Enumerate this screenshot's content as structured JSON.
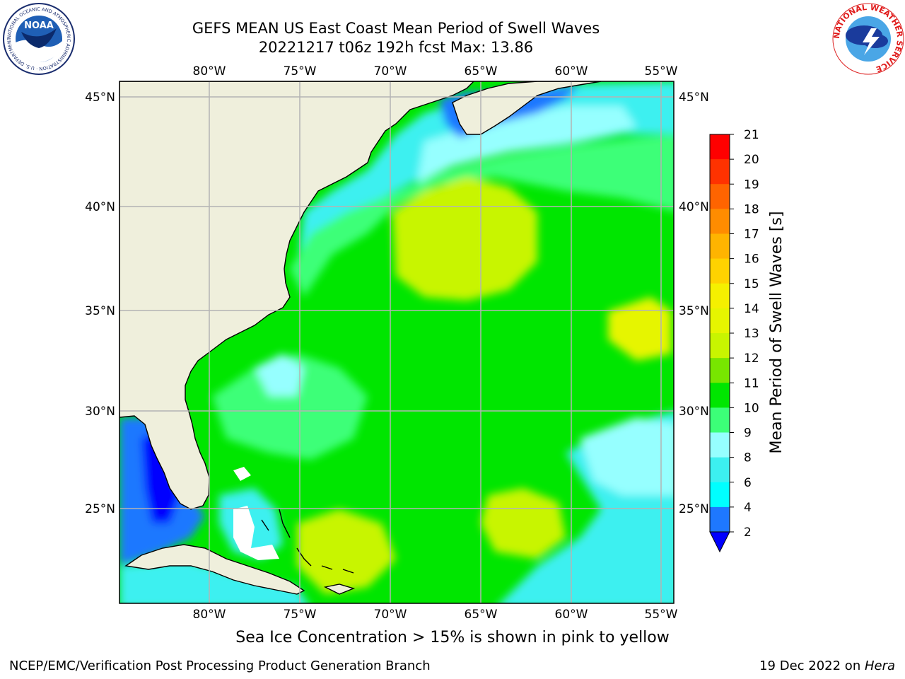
{
  "title": {
    "line1": "GEFS MEAN US East Coast Mean Period of Swell Waves",
    "line2": "20221217 t06z 192h fcst   Max: 13.86"
  },
  "map": {
    "lon_labels": [
      "80°W",
      "75°W",
      "70°W",
      "65°W",
      "60°W",
      "55°W"
    ],
    "lat_labels": [
      "45°N",
      "40°N",
      "35°N",
      "30°N",
      "25°N"
    ],
    "colors": {
      "land": "#efefdc",
      "grid": "#b4b4b4",
      "coast": "#000000",
      "ice_free": "#ffffff"
    },
    "regions": [
      {
        "name": "shelf-north",
        "color": "#3cf0f0"
      },
      {
        "name": "gulf-of-maine",
        "color": "#1e78ff"
      },
      {
        "name": "slope-light",
        "color": "#96ffff"
      },
      {
        "name": "mid-atlantic-green",
        "color": "#3cff78"
      },
      {
        "name": "central-green",
        "color": "#00e600"
      },
      {
        "name": "central-lime",
        "color": "#c8f500"
      },
      {
        "name": "east-yellow",
        "color": "#e6f500"
      },
      {
        "name": "southeast-cyan",
        "color": "#3cf0f0"
      },
      {
        "name": "gulf-blue",
        "color": "#1e78ff"
      },
      {
        "name": "gulf-deep",
        "color": "#0000ff"
      }
    ]
  },
  "colorbar": {
    "label": "Mean Period of Swell Waves [s]",
    "ticks": [
      "21",
      "20",
      "19",
      "18",
      "17",
      "16",
      "15",
      "14",
      "13",
      "12",
      "11",
      "10",
      "9",
      "8",
      "6",
      "4",
      "2"
    ],
    "colors": [
      "#ff0000",
      "#ff3200",
      "#ff6400",
      "#ff8c00",
      "#ffb400",
      "#ffd200",
      "#f5f000",
      "#e6f500",
      "#c8f500",
      "#78e600",
      "#00e600",
      "#3cff78",
      "#96ffff",
      "#3cf0f0",
      "#00ffff",
      "#1e78ff"
    ],
    "extend_color": "#0000ff"
  },
  "caption": "Sea Ice Concentration > 15% is shown in pink to yellow",
  "footer": {
    "left": "NCEP/EMC/Verification Post Processing Product Generation Branch",
    "right_prefix": "19 Dec 2022 on ",
    "right_host": "Hera"
  },
  "logos": {
    "left": "NOAA",
    "left_ring": "NATIONAL OCEANIC AND ATMOSPHERIC ADMINISTRATION · U.S. DEPARTMENT OF COMMERCE",
    "right_ring": "NATIONAL WEATHER SERVICE"
  }
}
